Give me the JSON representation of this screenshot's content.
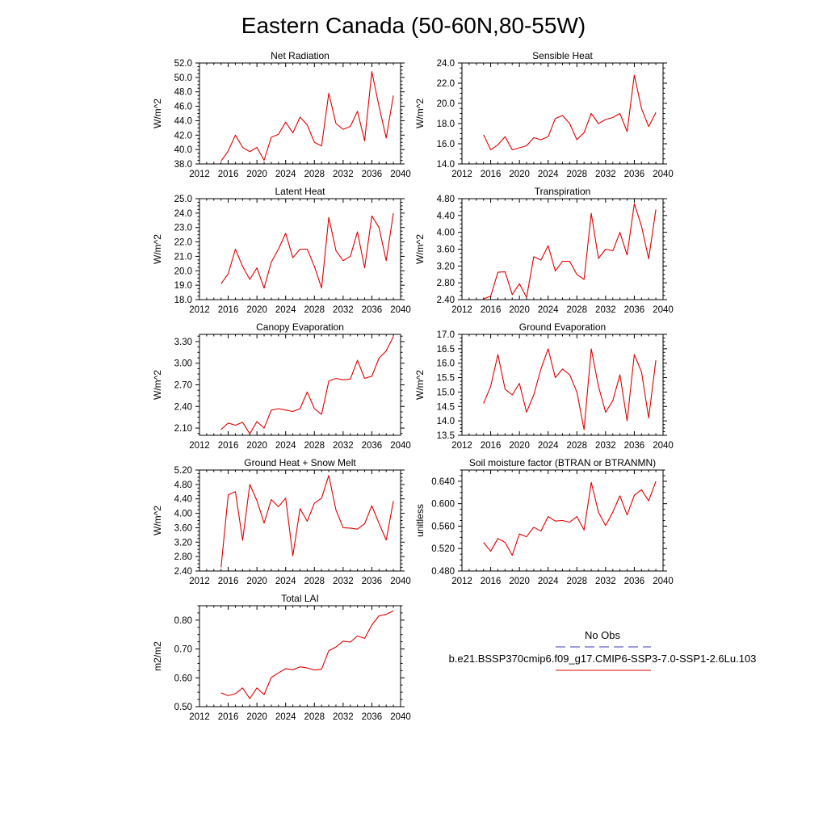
{
  "figure_title": "Eastern Canada (50-60N,80-55W)",
  "legend": {
    "obs_label": "No Obs",
    "obs_color": "#3b3bb5",
    "model_label": "b.e21.BSSP370cmip6.f09_g17.CMIP6-SSP3-7.0-SSP1-2.6Lu.103",
    "model_color": "#e00000"
  },
  "chart_data": [
    {
      "type": "line",
      "title": "Net Radiation",
      "ylabel": "W/m^2",
      "xlim": [
        2012,
        2040
      ],
      "xticks": [
        "2012",
        "2016",
        "2020",
        "2024",
        "2028",
        "2032",
        "2036",
        "2040"
      ],
      "ylim": [
        38.0,
        52.0
      ],
      "yticks": [
        "38.0",
        "40.0",
        "42.0",
        "44.0",
        "46.0",
        "48.0",
        "50.0",
        "52.0"
      ],
      "x": [
        2015,
        2016,
        2017,
        2018,
        2019,
        2020,
        2021,
        2022,
        2023,
        2024,
        2025,
        2026,
        2027,
        2028,
        2029,
        2030,
        2031,
        2032,
        2033,
        2034,
        2035,
        2036,
        2037,
        2038,
        2039
      ],
      "series": [
        {
          "color": "#e00000",
          "values": [
            38.4,
            39.8,
            42.0,
            40.3,
            39.7,
            40.3,
            38.5,
            41.7,
            42.1,
            43.8,
            42.3,
            44.5,
            43.4,
            41.0,
            40.5,
            47.8,
            43.6,
            42.8,
            43.2,
            45.3,
            41.2,
            50.8,
            46.0,
            41.6,
            47.5
          ]
        }
      ]
    },
    {
      "type": "line",
      "title": "Sensible Heat",
      "ylabel": "W/m^2",
      "xlim": [
        2012,
        2040
      ],
      "xticks": [
        "2012",
        "2016",
        "2020",
        "2024",
        "2028",
        "2032",
        "2036",
        "2040"
      ],
      "ylim": [
        14.0,
        24.0
      ],
      "yticks": [
        "14.0",
        "16.0",
        "18.0",
        "20.0",
        "22.0",
        "24.0"
      ],
      "x": [
        2015,
        2016,
        2017,
        2018,
        2019,
        2020,
        2021,
        2022,
        2023,
        2024,
        2025,
        2026,
        2027,
        2028,
        2029,
        2030,
        2031,
        2032,
        2033,
        2034,
        2035,
        2036,
        2037,
        2038,
        2039
      ],
      "series": [
        {
          "color": "#e00000",
          "values": [
            16.9,
            15.4,
            15.9,
            16.7,
            15.4,
            15.6,
            15.8,
            16.6,
            16.4,
            16.7,
            18.5,
            18.8,
            18.0,
            16.4,
            17.1,
            19.0,
            18.0,
            18.4,
            18.6,
            19.0,
            17.2,
            22.8,
            19.5,
            17.7,
            19.1
          ]
        }
      ]
    },
    {
      "type": "line",
      "title": "Latent Heat",
      "ylabel": "W/m^2",
      "xlim": [
        2012,
        2040
      ],
      "xticks": [
        "2012",
        "2016",
        "2020",
        "2024",
        "2028",
        "2032",
        "2036",
        "2040"
      ],
      "ylim": [
        18.0,
        25.0
      ],
      "yticks": [
        "18.0",
        "19.0",
        "20.0",
        "21.0",
        "22.0",
        "23.0",
        "24.0",
        "25.0"
      ],
      "x": [
        2015,
        2016,
        2017,
        2018,
        2019,
        2020,
        2021,
        2022,
        2023,
        2024,
        2025,
        2026,
        2027,
        2028,
        2029,
        2030,
        2031,
        2032,
        2033,
        2034,
        2035,
        2036,
        2037,
        2038,
        2039
      ],
      "series": [
        {
          "color": "#e00000",
          "values": [
            19.1,
            19.8,
            21.5,
            20.3,
            19.4,
            20.2,
            18.8,
            20.6,
            21.5,
            22.6,
            20.9,
            21.5,
            21.5,
            20.3,
            18.8,
            23.7,
            21.4,
            20.7,
            21.0,
            22.7,
            20.2,
            23.8,
            23.0,
            20.7,
            24.0
          ]
        }
      ]
    },
    {
      "type": "line",
      "title": "Transpiration",
      "ylabel": "W/m^2",
      "xlim": [
        2012,
        2040
      ],
      "xticks": [
        "2012",
        "2016",
        "2020",
        "2024",
        "2028",
        "2032",
        "2036",
        "2040"
      ],
      "ylim": [
        2.4,
        4.8
      ],
      "yticks": [
        "2.40",
        "2.80",
        "3.20",
        "3.60",
        "4.00",
        "4.40",
        "4.80"
      ],
      "x": [
        2015,
        2016,
        2017,
        2018,
        2019,
        2020,
        2021,
        2022,
        2023,
        2024,
        2025,
        2026,
        2027,
        2028,
        2029,
        2030,
        2031,
        2032,
        2033,
        2034,
        2035,
        2036,
        2037,
        2038,
        2039
      ],
      "series": [
        {
          "color": "#e00000",
          "values": [
            2.42,
            2.48,
            3.05,
            3.06,
            2.52,
            2.78,
            2.45,
            3.42,
            3.34,
            3.68,
            3.08,
            3.31,
            3.31,
            3.0,
            2.88,
            4.45,
            3.38,
            3.6,
            3.56,
            4.0,
            3.46,
            4.68,
            4.15,
            3.37,
            4.54
          ]
        }
      ]
    },
    {
      "type": "line",
      "title": "Canopy Evaporation",
      "ylabel": "W/m^2",
      "xlim": [
        2012,
        2040
      ],
      "xticks": [
        "2012",
        "2016",
        "2020",
        "2024",
        "2028",
        "2032",
        "2036",
        "2040"
      ],
      "ylim": [
        2.0,
        3.4
      ],
      "yticks": [
        "2.10",
        "2.40",
        "2.70",
        "3.00",
        "3.30"
      ],
      "x": [
        2015,
        2016,
        2017,
        2018,
        2019,
        2020,
        2021,
        2022,
        2023,
        2024,
        2025,
        2026,
        2027,
        2028,
        2029,
        2030,
        2031,
        2032,
        2033,
        2034,
        2035,
        2036,
        2037,
        2038,
        2039
      ],
      "series": [
        {
          "color": "#e00000",
          "values": [
            2.08,
            2.17,
            2.14,
            2.18,
            2.02,
            2.19,
            2.1,
            2.35,
            2.37,
            2.35,
            2.33,
            2.37,
            2.6,
            2.37,
            2.29,
            2.75,
            2.79,
            2.77,
            2.78,
            3.04,
            2.79,
            2.82,
            3.07,
            3.17,
            3.37
          ]
        }
      ]
    },
    {
      "type": "line",
      "title": "Ground Evaporation",
      "ylabel": "W/m^2",
      "xlim": [
        2012,
        2040
      ],
      "xticks": [
        "2012",
        "2016",
        "2020",
        "2024",
        "2028",
        "2032",
        "2036",
        "2040"
      ],
      "ylim": [
        13.5,
        17.0
      ],
      "yticks": [
        "13.5",
        "14.0",
        "14.5",
        "15.0",
        "15.5",
        "16.0",
        "16.5",
        "17.0"
      ],
      "x": [
        2015,
        2016,
        2017,
        2018,
        2019,
        2020,
        2021,
        2022,
        2023,
        2024,
        2025,
        2026,
        2027,
        2028,
        2029,
        2030,
        2031,
        2032,
        2033,
        2034,
        2035,
        2036,
        2037,
        2038,
        2039
      ],
      "series": [
        {
          "color": "#e00000",
          "values": [
            14.6,
            15.2,
            16.3,
            15.1,
            14.9,
            15.3,
            14.3,
            14.9,
            15.8,
            16.5,
            15.5,
            15.8,
            15.6,
            15.0,
            13.7,
            16.5,
            15.2,
            14.3,
            14.7,
            15.6,
            14.0,
            16.3,
            15.7,
            14.1,
            16.1
          ]
        }
      ]
    },
    {
      "type": "line",
      "title": "Ground Heat + Snow Melt",
      "ylabel": "W/m^2",
      "xlim": [
        2012,
        2040
      ],
      "xticks": [
        "2012",
        "2016",
        "2020",
        "2024",
        "2028",
        "2032",
        "2036",
        "2040"
      ],
      "ylim": [
        2.4,
        5.2
      ],
      "yticks": [
        "2.40",
        "2.80",
        "3.20",
        "3.60",
        "4.00",
        "4.40",
        "4.80",
        "5.20"
      ],
      "x": [
        2015,
        2016,
        2017,
        2018,
        2019,
        2020,
        2021,
        2022,
        2023,
        2024,
        2025,
        2026,
        2027,
        2028,
        2029,
        2030,
        2031,
        2032,
        2033,
        2034,
        2035,
        2036,
        2037,
        2038,
        2039
      ],
      "series": [
        {
          "color": "#e00000",
          "values": [
            2.5,
            4.51,
            4.6,
            3.25,
            4.8,
            4.35,
            3.73,
            4.38,
            4.18,
            4.42,
            2.82,
            4.13,
            3.78,
            4.28,
            4.42,
            5.05,
            4.09,
            3.6,
            3.59,
            3.56,
            3.71,
            4.21,
            3.72,
            3.26,
            4.34
          ]
        }
      ]
    },
    {
      "type": "line",
      "title": "Soil moisture factor (BTRAN or BTRANMN)",
      "ylabel": "unitless",
      "xlim": [
        2012,
        2040
      ],
      "xticks": [
        "2012",
        "2016",
        "2020",
        "2024",
        "2028",
        "2032",
        "2036",
        "2040"
      ],
      "ylim": [
        0.48,
        0.66
      ],
      "yticks": [
        "0.480",
        "0.520",
        "0.560",
        "0.600",
        "0.640"
      ],
      "x": [
        2015,
        2016,
        2017,
        2018,
        2019,
        2020,
        2021,
        2022,
        2023,
        2024,
        2025,
        2026,
        2027,
        2028,
        2029,
        2030,
        2031,
        2032,
        2033,
        2034,
        2035,
        2036,
        2037,
        2038,
        2039
      ],
      "series": [
        {
          "color": "#e00000",
          "values": [
            0.531,
            0.515,
            0.538,
            0.531,
            0.508,
            0.546,
            0.541,
            0.558,
            0.551,
            0.577,
            0.569,
            0.57,
            0.567,
            0.577,
            0.553,
            0.638,
            0.585,
            0.561,
            0.585,
            0.614,
            0.58,
            0.615,
            0.625,
            0.605,
            0.64
          ]
        }
      ]
    },
    {
      "type": "line",
      "title": "Total LAI",
      "ylabel": "m2/m2",
      "xlim": [
        2012,
        2040
      ],
      "xticks": [
        "2012",
        "2016",
        "2020",
        "2024",
        "2028",
        "2032",
        "2036",
        "2040"
      ],
      "ylim": [
        0.5,
        0.85
      ],
      "yticks": [
        "0.50",
        "0.60",
        "0.70",
        "0.80"
      ],
      "x": [
        2015,
        2016,
        2017,
        2018,
        2019,
        2020,
        2021,
        2022,
        2023,
        2024,
        2025,
        2026,
        2027,
        2028,
        2029,
        2030,
        2031,
        2032,
        2033,
        2034,
        2035,
        2036,
        2037,
        2038,
        2039
      ],
      "series": [
        {
          "color": "#e00000",
          "values": [
            0.548,
            0.538,
            0.545,
            0.565,
            0.528,
            0.565,
            0.542,
            0.601,
            0.617,
            0.632,
            0.628,
            0.638,
            0.634,
            0.627,
            0.63,
            0.694,
            0.707,
            0.727,
            0.724,
            0.745,
            0.737,
            0.783,
            0.815,
            0.82,
            0.832
          ]
        }
      ]
    }
  ]
}
